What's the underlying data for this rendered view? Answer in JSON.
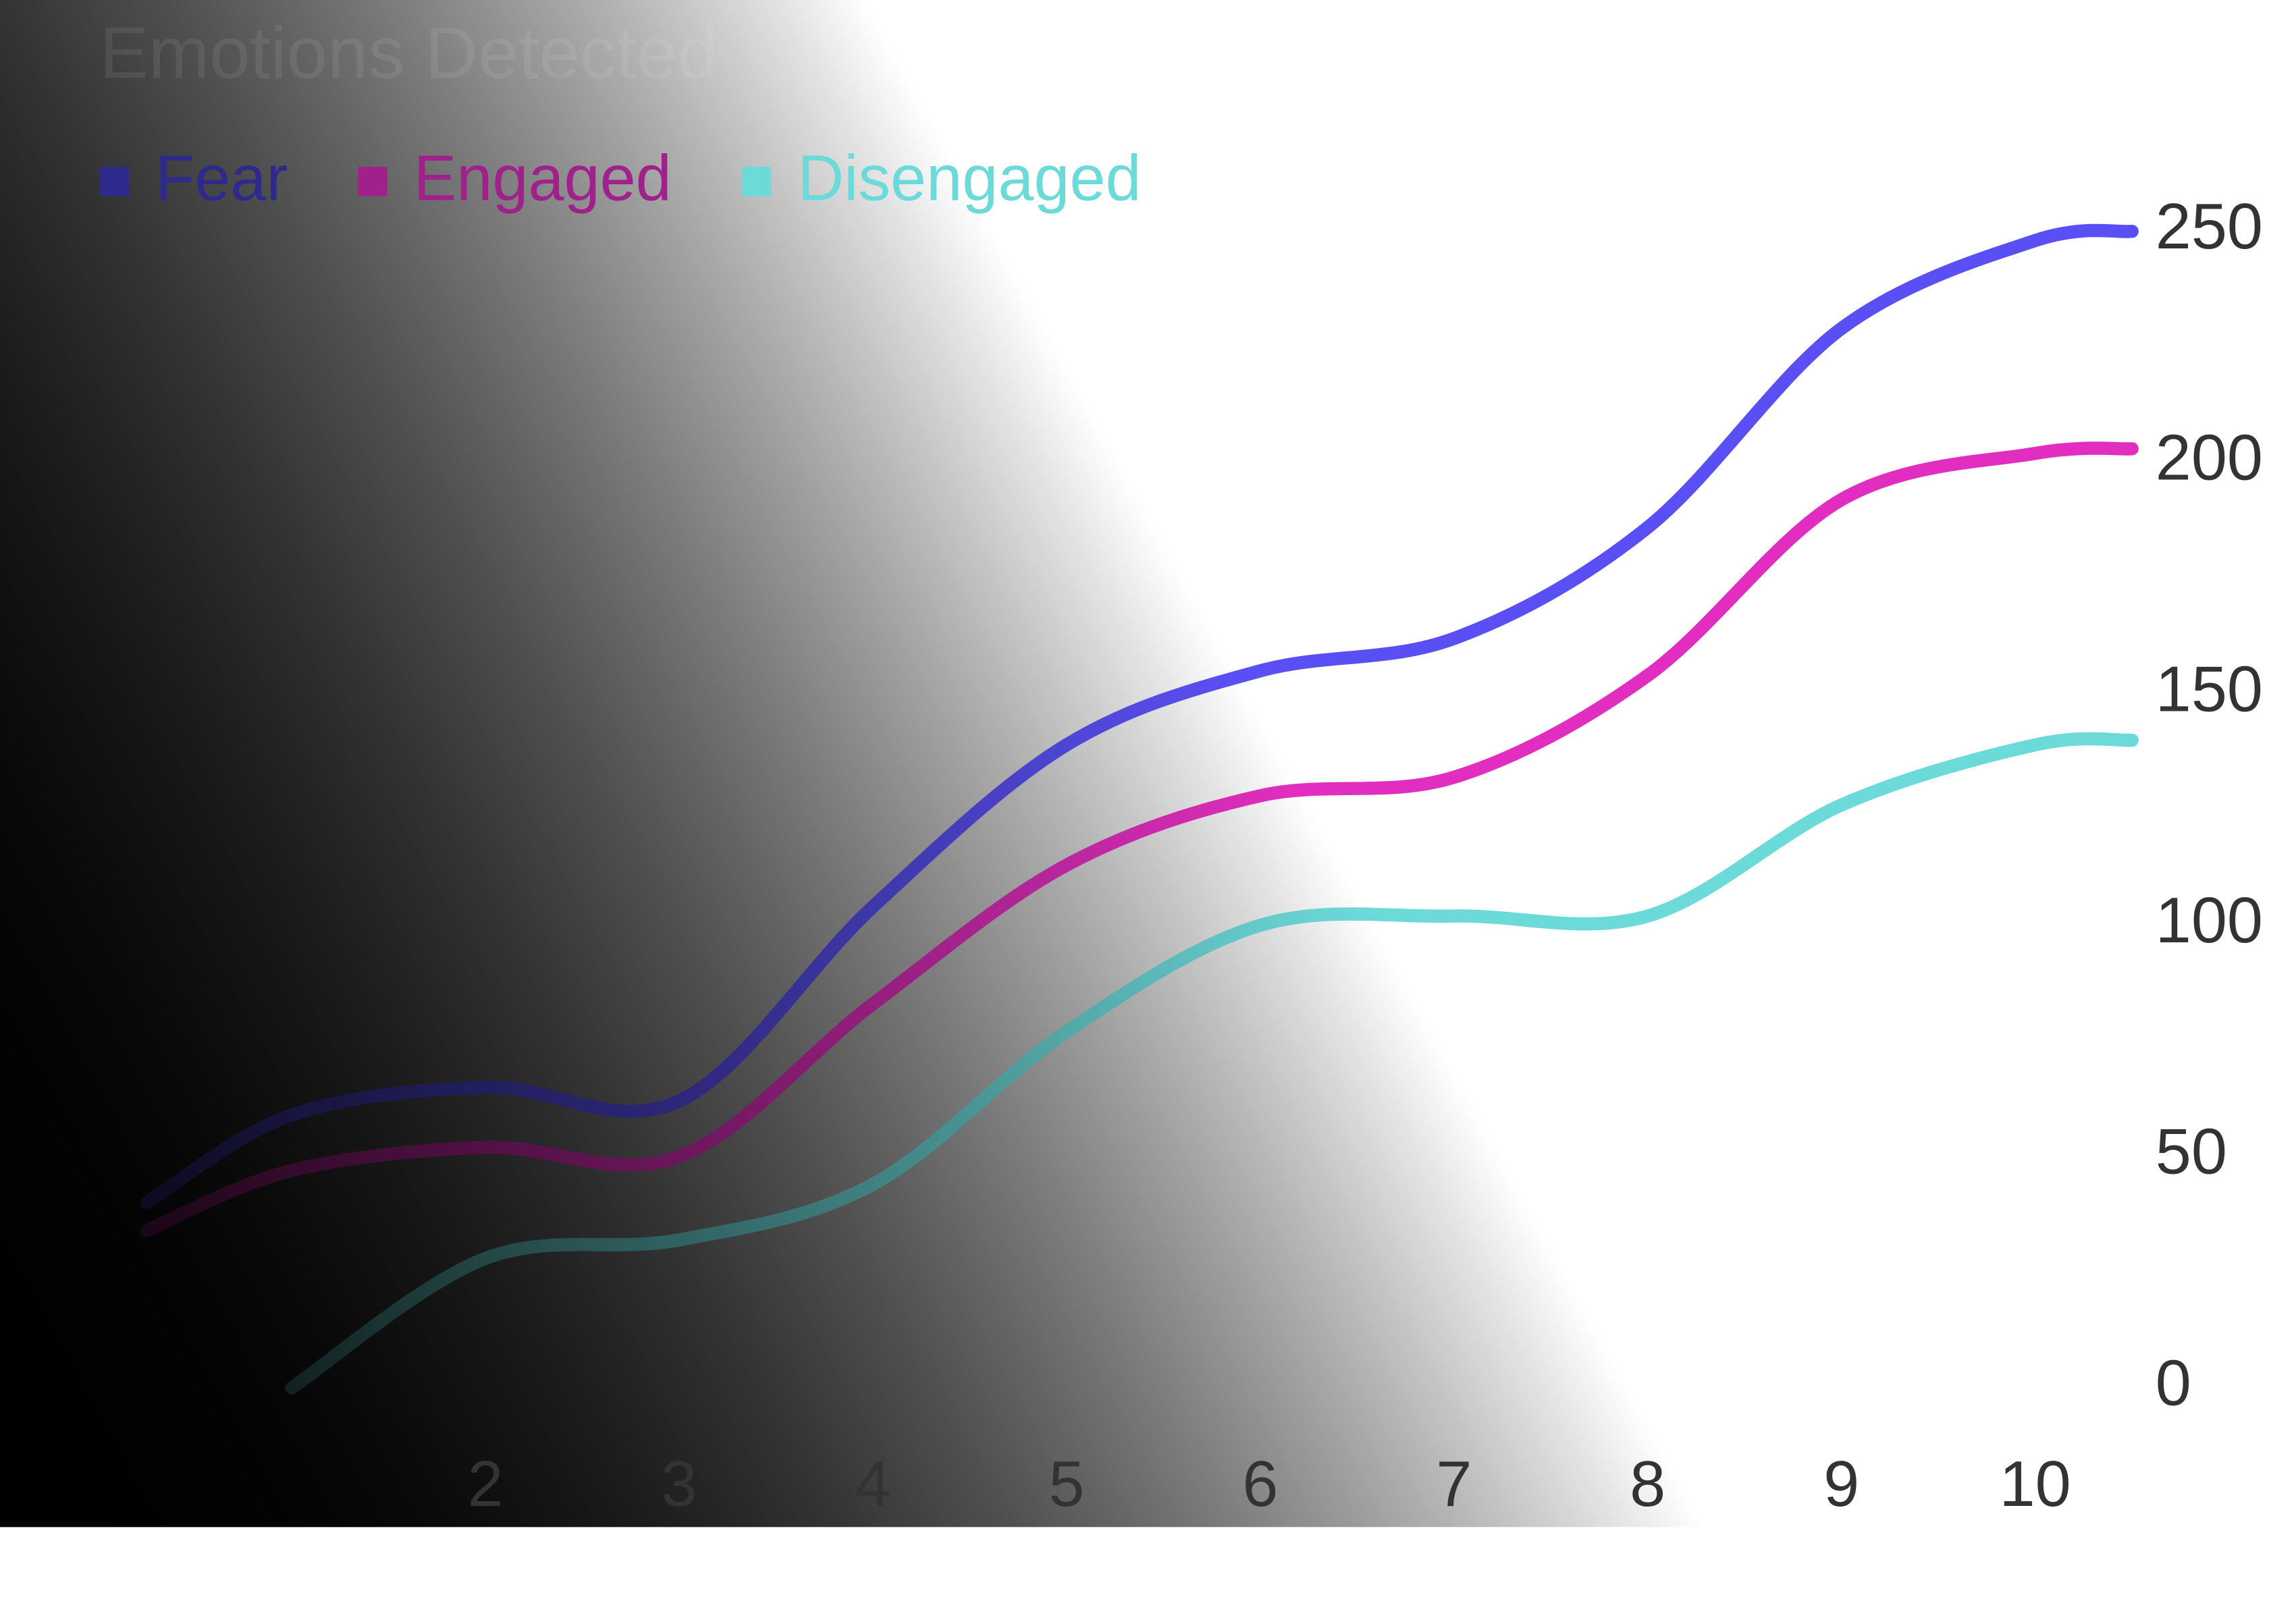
{
  "chart_data": {
    "type": "line",
    "title": "Emotions Detected",
    "x": [
      0.25,
      1,
      2,
      3,
      4,
      5,
      6,
      7,
      8,
      9,
      10,
      10.5
    ],
    "series": [
      {
        "name": "Fear",
        "color": "#5a4ff5",
        "legend_color": "#2e2a8c",
        "values": [
          40,
          59,
          65,
          62,
          104,
          139,
          155,
          162,
          186,
          229,
          248,
          250
        ]
      },
      {
        "name": "Engaged",
        "color": "#e22ec0",
        "legend_color": "#a0208c",
        "values": [
          34,
          47,
          52,
          50,
          83,
          113,
          128,
          132,
          154,
          192,
          202,
          203
        ]
      },
      {
        "name": "Disengaged",
        "color": "#6ddada",
        "legend_color": "#6ddada",
        "values": [
          null,
          0,
          28,
          32,
          44,
          77,
          100,
          102,
          102,
          126,
          139,
          140
        ]
      }
    ],
    "xlim": [
      0.25,
      10.5
    ],
    "xticks": [
      2,
      3,
      4,
      5,
      6,
      7,
      8,
      9,
      10
    ],
    "ylim": [
      0,
      250
    ],
    "yticks": [
      0,
      50,
      100,
      150,
      200,
      250
    ]
  }
}
